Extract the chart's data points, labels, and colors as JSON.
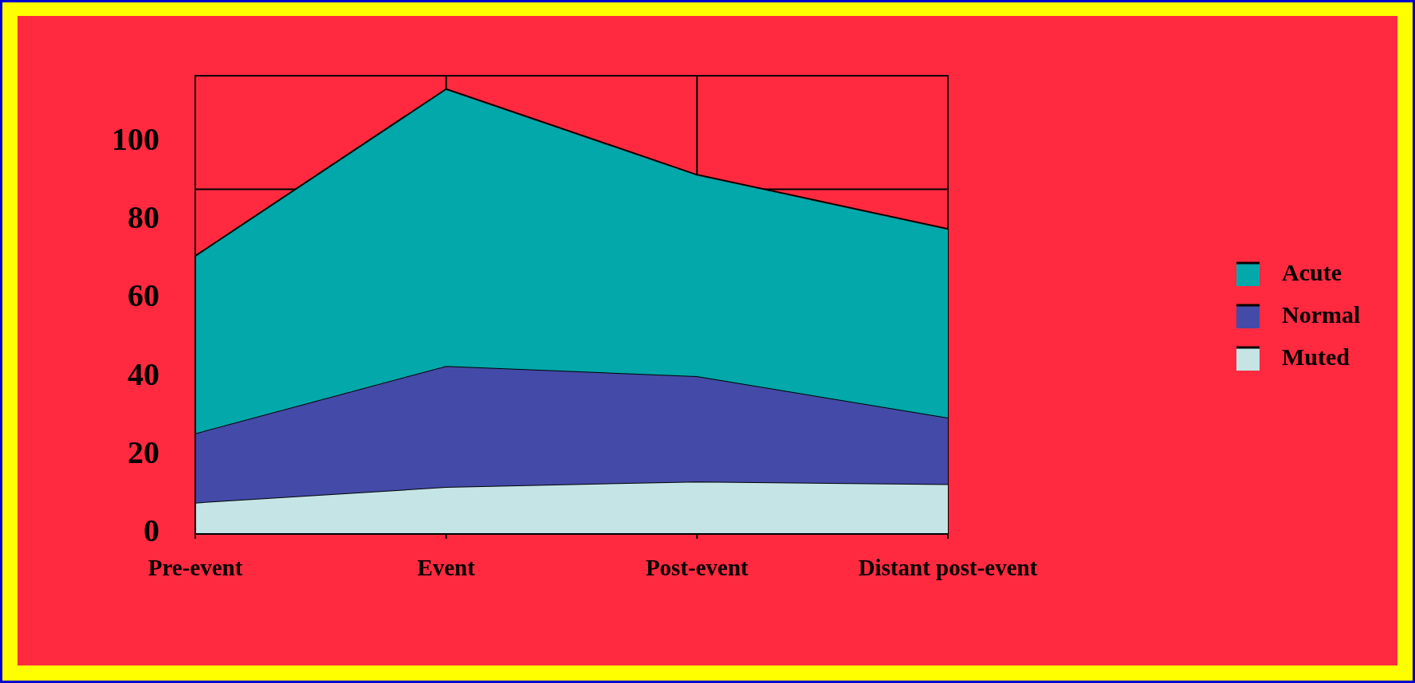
{
  "chart_data": {
    "type": "area",
    "stacked": true,
    "categories": [
      "Pre-event",
      "Event",
      "Post-event",
      "Distant post-event"
    ],
    "series": [
      {
        "name": "Muted",
        "color": "#c4e4e6",
        "values": [
          8,
          12,
          13.4,
          12.7
        ]
      },
      {
        "name": "Normal",
        "color": "#434aa8",
        "values": [
          17.7,
          30.9,
          26.9,
          17
        ]
      },
      {
        "name": "Acute",
        "color": "#02a8aa",
        "values": [
          45.3,
          70.7,
          51.4,
          48.2
        ]
      }
    ],
    "ylim": [
      0,
      117
    ],
    "yticks": [
      0,
      20,
      40,
      60,
      80,
      100
    ],
    "grid": "x",
    "legend": "right",
    "ref_lines": [
      {
        "axis": "y",
        "value": 88,
        "color": "#000000"
      }
    ]
  }
}
